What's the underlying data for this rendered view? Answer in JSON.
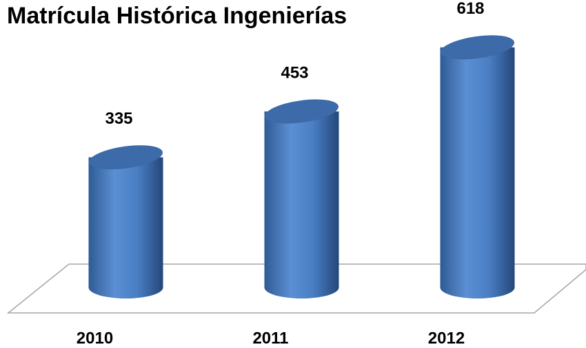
{
  "chart_data": {
    "type": "bar",
    "title": "Matrícula Histórica Ingenierías",
    "categories": [
      "2010",
      "2011",
      "2012"
    ],
    "values": [
      335,
      453,
      618
    ],
    "color": "#4f81bd"
  }
}
